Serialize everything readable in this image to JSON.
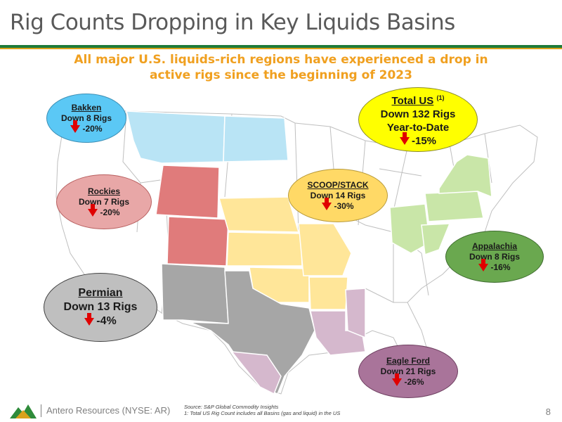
{
  "title": "Rig Counts Dropping in Key Liquids Basins",
  "headline": {
    "line1": "All major U.S. liquids-rich regions have experienced a drop in",
    "line2": "active rigs since the beginning of 2023"
  },
  "callouts": {
    "bakken": {
      "name": "Bakken",
      "rigs": "Down 8 Rigs",
      "pct": "-20%",
      "color": "#5bc8f5"
    },
    "rockies": {
      "name": "Rockies",
      "rigs": "Down 7 Rigs",
      "pct": "-20%",
      "color": "#e8a7a7"
    },
    "permian": {
      "name": "Permian",
      "rigs": "Down 13 Rigs",
      "pct": "-4%",
      "color": "#bfbfbf"
    },
    "scoop": {
      "name": "SCOOP/STACK",
      "rigs": "Down 14 Rigs",
      "pct": "-30%",
      "color": "#ffd966"
    },
    "total": {
      "name": "Total US",
      "sup": "(1)",
      "rigs": "Down 132 Rigs",
      "ytd": "Year-to-Date",
      "pct": "-15%",
      "color": "#ffff00"
    },
    "appalachia": {
      "name": "Appalachia",
      "rigs": "Down 8 Rigs",
      "pct": "-16%",
      "color": "#6aa84f"
    },
    "eagleford": {
      "name": "Eagle Ford",
      "rigs": "Down 21 Rigs",
      "pct": "-26%",
      "color": "#a9749a"
    }
  },
  "footer": {
    "company": "Antero Resources (NYSE: AR)",
    "source": "Source: S&P Global Commodity Insights",
    "note": "1: Total US Rig Count includes all Basins (gas and liquid) in the US",
    "page": "8"
  }
}
